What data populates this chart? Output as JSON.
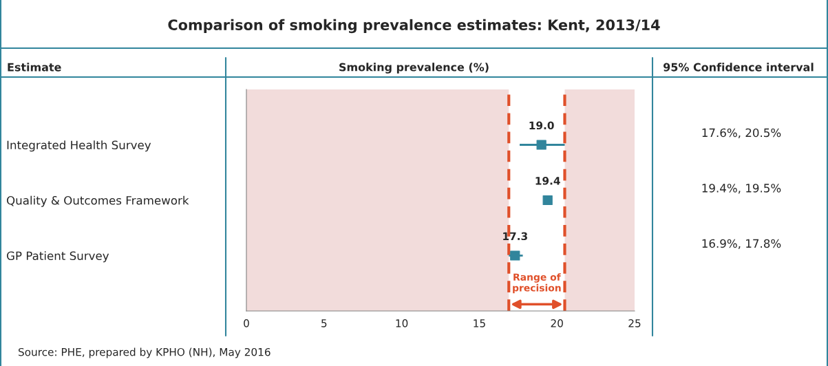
{
  "chart_data": {
    "type": "scatter",
    "orientation": "horizontal",
    "title": "Comparison of smoking prevalence estimates: Kent, 2013/14",
    "xlabel": "Smoking prevalence (%)",
    "categories": [
      "Integrated Health Survey",
      "Quality & Outcomes Framework",
      "GP Patient Survey"
    ],
    "values": [
      19.0,
      19.4,
      17.3
    ],
    "errors": [
      [
        17.6,
        20.5
      ],
      [
        19.4,
        19.5
      ],
      [
        16.9,
        17.8
      ]
    ],
    "value_labels": [
      "19.0",
      "19.4",
      "17.3"
    ],
    "color": "#31859c",
    "marker": "square",
    "xlim": [
      0,
      25
    ],
    "xticks": [
      0,
      5,
      10,
      15,
      20,
      25
    ],
    "grid": false,
    "legend": false,
    "bands": [
      {
        "axis": "x",
        "from": 0,
        "to": 16.9,
        "color": "#f2dcdb"
      },
      {
        "axis": "x",
        "from": 20.5,
        "to": 25,
        "color": "#f2dcdb"
      }
    ],
    "ref_lines": [
      {
        "axis": "x",
        "value": 16.9,
        "color": "#e0502a",
        "line_style": "dashed"
      },
      {
        "axis": "x",
        "value": 20.5,
        "color": "#e0502a",
        "line_style": "dashed"
      }
    ],
    "annotations": [
      "Range of\nprecision",
      "Estimate",
      "95% Confidence interval",
      "17.6%, 20.5%",
      "19.4%, 19.5%",
      "16.9%, 17.8%",
      "Source: PHE, prepared by KPHO (NH), May 2016"
    ]
  }
}
